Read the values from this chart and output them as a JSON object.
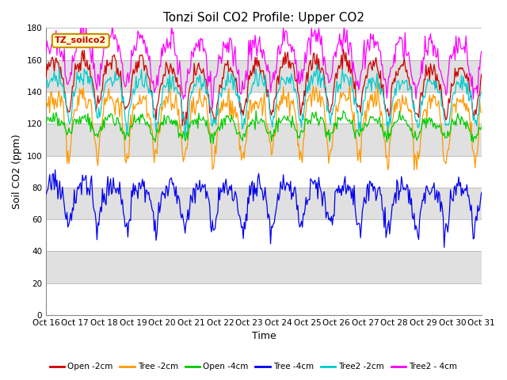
{
  "title": "Tonzi Soil CO2 Profile: Upper CO2",
  "xlabel": "Time",
  "ylabel": "Soil CO2 (ppm)",
  "ylim": [
    0,
    180
  ],
  "yticks": [
    0,
    20,
    40,
    60,
    80,
    100,
    120,
    140,
    160,
    180
  ],
  "legend_label": "TZ_soilco2",
  "series_order": [
    "Open -2cm",
    "Tree -2cm",
    "Open -4cm",
    "Tree -4cm",
    "Tree2 -2cm",
    "Tree2 - 4cm"
  ],
  "series": {
    "Open -2cm": {
      "color": "#cc0000",
      "base": 148,
      "amp": 10,
      "dip_amp": 22,
      "noise": 3,
      "phase": 0.15
    },
    "Tree -2cm": {
      "color": "#ff9900",
      "base": 130,
      "amp": 5,
      "dip_amp": 32,
      "noise": 4,
      "phase": 0.15
    },
    "Open -4cm": {
      "color": "#00cc00",
      "base": 120,
      "amp": 3,
      "dip_amp": 8,
      "noise": 2,
      "phase": 0.1
    },
    "Tree -4cm": {
      "color": "#0000ee",
      "base": 76,
      "amp": 5,
      "dip_amp": 22,
      "noise": 4,
      "phase": 0.15
    },
    "Tree2 -2cm": {
      "color": "#00cccc",
      "base": 140,
      "amp": 8,
      "dip_amp": 20,
      "noise": 3,
      "phase": 0.2
    },
    "Tree2 - 4cm": {
      "color": "#ff00ff",
      "base": 163,
      "amp": 10,
      "dip_amp": 20,
      "noise": 4,
      "phase": 0.1
    }
  },
  "xtick_labels": [
    "Oct 16",
    "Oct 17",
    "Oct 18",
    "Oct 19",
    "Oct 20",
    "Oct 21",
    "Oct 22",
    "Oct 23",
    "Oct 24",
    "Oct 25",
    "Oct 26",
    "Oct 27",
    "Oct 28",
    "Oct 29",
    "Oct 30",
    "Oct 31"
  ],
  "n_points": 480,
  "background_color": "#ffffff",
  "plot_bg_color": "#e8e8e8",
  "stripe_colors": [
    "#ffffff",
    "#e0e0e0"
  ],
  "title_fontsize": 11,
  "axis_fontsize": 9,
  "tick_fontsize": 7.5
}
